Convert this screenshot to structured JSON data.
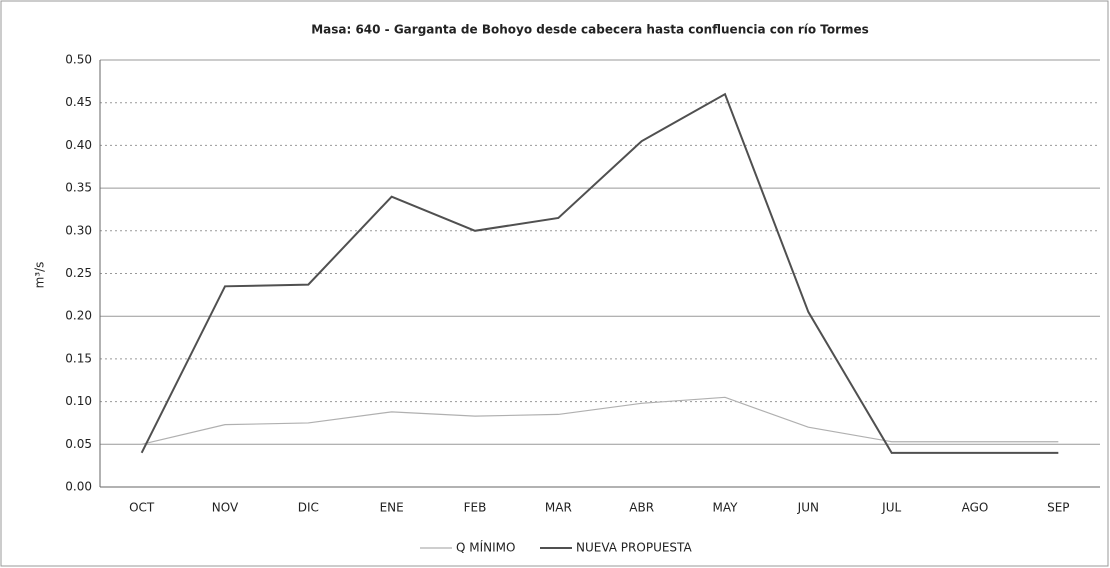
{
  "chart_data": {
    "type": "line",
    "title": "Masa: 640 - Garganta de Bohoyo desde cabecera hasta confluencia con río Tormes",
    "y_label": "m³/s",
    "categories": [
      "OCT",
      "NOV",
      "DIC",
      "ENE",
      "FEB",
      "MAR",
      "ABR",
      "MAY",
      "JUN",
      "JUL",
      "AGO",
      "SEP"
    ],
    "series": [
      {
        "name": "Q MÍNIMO",
        "color": "#b0b0b0",
        "values": [
          0.05,
          0.073,
          0.075,
          0.088,
          0.083,
          0.085,
          0.098,
          0.105,
          0.07,
          0.053,
          0.053,
          0.053
        ]
      },
      {
        "name": "NUEVA PROPUESTA",
        "color": "#505050",
        "values": [
          0.04,
          0.235,
          0.237,
          0.34,
          0.3,
          0.315,
          0.405,
          0.46,
          0.205,
          0.04,
          0.04,
          0.04
        ]
      }
    ],
    "ylim": [
      0,
      0.5
    ],
    "yticks": [
      {
        "value": 0,
        "label": "0.00"
      },
      {
        "value": 0.05,
        "label": "0.05"
      },
      {
        "value": 0.1,
        "label": "0.10"
      },
      {
        "value": 0.15,
        "label": "0.15"
      },
      {
        "value": 0.2,
        "label": "0.20"
      },
      {
        "value": 0.25,
        "label": "0.25"
      },
      {
        "value": 0.3,
        "label": "0.30"
      },
      {
        "value": 0.35,
        "label": "0.35"
      },
      {
        "value": 0.4,
        "label": "0.40"
      },
      {
        "value": 0.45,
        "label": "0.45"
      },
      {
        "value": 0.5,
        "label": "0.50"
      }
    ],
    "grid": true,
    "legend": "bottom"
  }
}
